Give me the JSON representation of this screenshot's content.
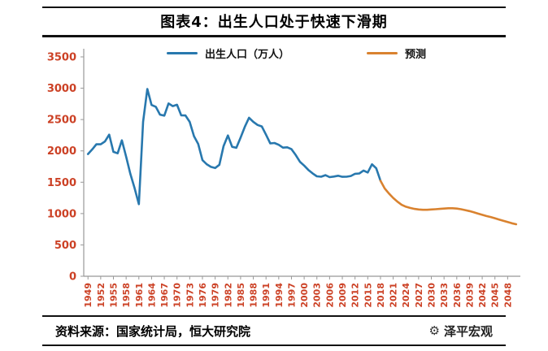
{
  "title": "图表4：出生人口处于快速下滑期",
  "legend": [
    {
      "label": "出生人口（万人）",
      "color": "#2878ae"
    },
    {
      "label": "预测",
      "color": "#d9822f"
    }
  ],
  "footer": {
    "source": "资料来源：国家统计局，恒大研究院",
    "brand": "泽平宏观",
    "brand_icon": {
      "name": "gear-icon",
      "glyph": "⚙"
    }
  },
  "chart_data": {
    "type": "line",
    "title": "图表4：出生人口处于快速下滑期",
    "xlabel": "",
    "ylabel": "",
    "xlim": [
      1948,
      2051
    ],
    "ylim": [
      0,
      3500
    ],
    "ytick_step": 500,
    "xtick_step": 3,
    "xticks": [
      1949,
      1952,
      1955,
      1958,
      1961,
      1964,
      1967,
      1970,
      1973,
      1976,
      1979,
      1982,
      1985,
      1988,
      1991,
      1994,
      1997,
      2000,
      2003,
      2006,
      2009,
      2012,
      2015,
      2018,
      2021,
      2024,
      2027,
      2030,
      2033,
      2036,
      2039,
      2042,
      2045,
      2048
    ],
    "grid": false,
    "legend_position": "top",
    "tick_color": "#cc4125",
    "axis_color": "#999999",
    "series": [
      {
        "name": "出生人口（万人）",
        "color": "#2878ae",
        "start_year": 1949,
        "values": [
          1950,
          2023,
          2107,
          2105,
          2151,
          2260,
          1984,
          1961,
          2169,
          1909,
          1635,
          1402,
          1150,
          2464,
          2988,
          2733,
          2704,
          2578,
          2563,
          2757,
          2715,
          2736,
          2567,
          2566,
          2463,
          2235,
          2109,
          1853,
          1787,
          1745,
          1727,
          1779,
          2078,
          2247,
          2065,
          2050,
          2211,
          2384,
          2529,
          2464,
          2414,
          2391,
          2258,
          2119,
          2126,
          2098,
          2052,
          2057,
          2028,
          1934,
          1827,
          1765,
          1696,
          1641,
          1594,
          1588,
          1612,
          1581,
          1591,
          1604,
          1587,
          1588,
          1600,
          1635,
          1640,
          1687,
          1655,
          1786,
          1723,
          1523
        ]
      },
      {
        "name": "预测",
        "color": "#d9822f",
        "start_year": 2018,
        "values": [
          1523,
          1400,
          1320,
          1250,
          1190,
          1140,
          1110,
          1090,
          1075,
          1065,
          1060,
          1060,
          1065,
          1070,
          1075,
          1080,
          1085,
          1085,
          1080,
          1070,
          1055,
          1040,
          1020,
          1000,
          980,
          960,
          945,
          925,
          905,
          885,
          865,
          845,
          830
        ]
      }
    ]
  }
}
